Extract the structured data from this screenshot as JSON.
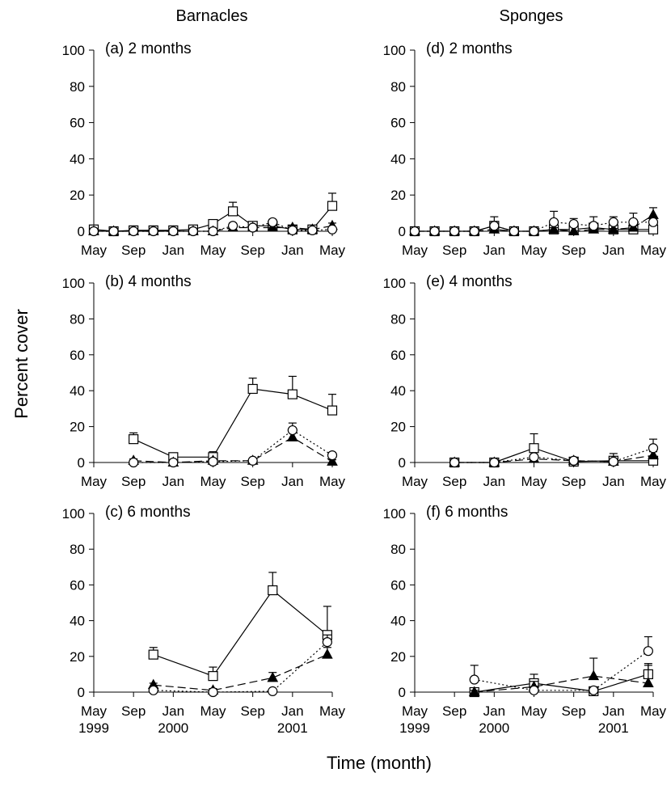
{
  "figure": {
    "ylabel": "Percent cover",
    "xlabel": "Time (month)",
    "column_titles": [
      "Barnacles",
      "Sponges"
    ]
  },
  "chart_data": [
    {
      "type": "line",
      "panel": "(a) 2 months",
      "column": "Barnacles",
      "ylim": [
        0,
        100
      ],
      "yticks": [
        0,
        20,
        40,
        60,
        80,
        100
      ],
      "xlim": [
        0,
        24
      ],
      "xticks": [
        0,
        4,
        8,
        12,
        16,
        20,
        24
      ],
      "xticklabels": [
        "May",
        "Sep",
        "Jan",
        "May",
        "Sep",
        "Jan",
        "May"
      ],
      "series": [
        {
          "marker": "square-open",
          "line": "solid",
          "x": [
            0,
            2,
            4,
            6,
            8,
            10,
            12,
            14,
            16,
            18,
            20,
            22,
            24
          ],
          "y": [
            1,
            0,
            0.5,
            0.5,
            0.5,
            1,
            4,
            11,
            3,
            3,
            1,
            1,
            14
          ],
          "err": [
            1,
            0,
            0.5,
            0.5,
            0.5,
            1,
            2,
            5,
            1.5,
            1.5,
            1,
            1,
            7
          ]
        },
        {
          "marker": "triangle-filled",
          "line": "dashed",
          "x": [
            0,
            2,
            4,
            6,
            8,
            10,
            12,
            14,
            16,
            18,
            20,
            22,
            24
          ],
          "y": [
            0,
            0,
            0,
            0,
            0,
            0,
            0,
            2,
            2,
            2,
            2,
            1,
            3
          ],
          "err": [
            0,
            0,
            0,
            0,
            0,
            0,
            0,
            1,
            1,
            1,
            1,
            0.5,
            1.5
          ]
        },
        {
          "marker": "circle-open",
          "line": "dotted",
          "x": [
            0,
            2,
            4,
            6,
            8,
            10,
            12,
            14,
            16,
            18,
            20,
            22,
            24
          ],
          "y": [
            0,
            0,
            0,
            0,
            0,
            0,
            0,
            3,
            2,
            5,
            0.5,
            0.5,
            1
          ],
          "err": [
            0,
            0,
            0,
            0,
            0,
            0,
            0,
            1.5,
            1,
            1.5,
            0.5,
            0.5,
            1
          ]
        }
      ]
    },
    {
      "type": "line",
      "panel": "(b) 4 months",
      "column": "Barnacles",
      "ylim": [
        0,
        100
      ],
      "yticks": [
        0,
        20,
        40,
        60,
        80,
        100
      ],
      "xlim": [
        0,
        24
      ],
      "xticks": [
        0,
        4,
        8,
        12,
        16,
        20,
        24
      ],
      "xticklabels": [
        "May",
        "Sep",
        "Jan",
        "May",
        "Sep",
        "Jan",
        "May"
      ],
      "series": [
        {
          "marker": "square-open",
          "line": "solid",
          "x": [
            4,
            8,
            12,
            16,
            20,
            24
          ],
          "y": [
            13,
            3,
            3,
            41,
            38,
            29
          ],
          "err": [
            3.5,
            1.5,
            3,
            6,
            10,
            9
          ]
        },
        {
          "marker": "triangle-filled",
          "line": "dashed",
          "x": [
            4,
            8,
            12,
            16,
            20,
            24
          ],
          "y": [
            1,
            0,
            1,
            1,
            14,
            0.5
          ],
          "err": [
            1,
            0,
            1,
            1,
            4,
            1
          ]
        },
        {
          "marker": "circle-open",
          "line": "dotted",
          "x": [
            4,
            8,
            12,
            16,
            20,
            24
          ],
          "y": [
            0,
            0,
            0.5,
            1,
            18,
            4
          ],
          "err": [
            0,
            0,
            0.5,
            1,
            4,
            1.5
          ]
        }
      ]
    },
    {
      "type": "line",
      "panel": "(c) 6 months",
      "column": "Barnacles",
      "ylim": [
        0,
        100
      ],
      "yticks": [
        0,
        20,
        40,
        60,
        80,
        100
      ],
      "xlim": [
        0,
        24
      ],
      "xticks": [
        0,
        4,
        8,
        12,
        16,
        20,
        24
      ],
      "xticklabels": [
        "May\n1999",
        "Sep",
        "Jan\n2000",
        "May",
        "Sep",
        "Jan\n2001",
        "May"
      ],
      "series": [
        {
          "marker": "square-open",
          "line": "solid",
          "x": [
            6,
            12,
            18,
            23.5
          ],
          "y": [
            21,
            9,
            57,
            32
          ],
          "err": [
            4,
            5,
            10,
            16
          ]
        },
        {
          "marker": "triangle-filled",
          "line": "dashed",
          "x": [
            6,
            12,
            18,
            23.5
          ],
          "y": [
            4,
            1,
            8,
            21
          ],
          "err": [
            1,
            1,
            3,
            4
          ]
        },
        {
          "marker": "circle-open",
          "line": "dotted",
          "x": [
            6,
            12,
            18,
            23.5
          ],
          "y": [
            1,
            0,
            0.5,
            28
          ],
          "err": [
            1,
            0,
            0.5,
            4
          ]
        }
      ]
    },
    {
      "type": "line",
      "panel": "(d) 2 months",
      "column": "Sponges",
      "ylim": [
        0,
        100
      ],
      "yticks": [
        0,
        20,
        40,
        60,
        80,
        100
      ],
      "xlim": [
        0,
        24
      ],
      "xticks": [
        0,
        4,
        8,
        12,
        16,
        20,
        24
      ],
      "xticklabels": [
        "May",
        "Sep",
        "Jan",
        "May",
        "Sep",
        "Jan",
        "May"
      ],
      "series": [
        {
          "marker": "square-open",
          "line": "solid",
          "x": [
            0,
            2,
            4,
            6,
            8,
            10,
            12,
            14,
            16,
            18,
            20,
            22,
            24
          ],
          "y": [
            0,
            0,
            0,
            0,
            3,
            0,
            0,
            1,
            1,
            2,
            1,
            1,
            1
          ],
          "err": [
            0,
            0,
            0,
            0,
            1,
            0,
            0,
            0.5,
            0.5,
            1,
            0.5,
            0.5,
            0.5
          ]
        },
        {
          "marker": "triangle-filled",
          "line": "dashed",
          "x": [
            0,
            2,
            4,
            6,
            8,
            10,
            12,
            14,
            16,
            18,
            20,
            22,
            24
          ],
          "y": [
            0,
            0,
            0,
            0,
            1,
            0,
            0,
            1,
            0,
            1,
            1,
            2,
            9
          ],
          "err": [
            0,
            0,
            0,
            0,
            1,
            0,
            0,
            1,
            0,
            0.5,
            0.5,
            1,
            4
          ]
        },
        {
          "marker": "circle-open",
          "line": "dotted",
          "x": [
            0,
            2,
            4,
            6,
            8,
            10,
            12,
            14,
            16,
            18,
            20,
            22,
            24
          ],
          "y": [
            0,
            0,
            0,
            0,
            3,
            0,
            0,
            5,
            4,
            3,
            5,
            5,
            5
          ],
          "err": [
            0,
            0,
            0,
            0,
            5,
            0,
            0,
            6,
            3,
            5,
            3,
            5,
            3
          ]
        }
      ]
    },
    {
      "type": "line",
      "panel": "(e) 4 months",
      "column": "Sponges",
      "ylim": [
        0,
        100
      ],
      "yticks": [
        0,
        20,
        40,
        60,
        80,
        100
      ],
      "xlim": [
        0,
        24
      ],
      "xticks": [
        0,
        4,
        8,
        12,
        16,
        20,
        24
      ],
      "xticklabels": [
        "May",
        "Sep",
        "Jan",
        "May",
        "Sep",
        "Jan",
        "May"
      ],
      "series": [
        {
          "marker": "square-open",
          "line": "solid",
          "x": [
            4,
            8,
            12,
            16,
            20,
            24
          ],
          "y": [
            0,
            0,
            8,
            0.5,
            1,
            1
          ],
          "err": [
            0,
            0,
            8,
            1,
            4,
            1
          ]
        },
        {
          "marker": "triangle-filled",
          "line": "dashed",
          "x": [
            4,
            8,
            12,
            16,
            20,
            24
          ],
          "y": [
            0,
            0,
            2,
            1,
            0.5,
            4
          ],
          "err": [
            0,
            0,
            1,
            1,
            0.5,
            2
          ]
        },
        {
          "marker": "circle-open",
          "line": "dotted",
          "x": [
            4,
            8,
            12,
            16,
            20,
            24
          ],
          "y": [
            0,
            0,
            3,
            1,
            0.5,
            8
          ],
          "err": [
            0,
            0,
            1,
            1,
            0.5,
            5
          ]
        }
      ]
    },
    {
      "type": "line",
      "panel": "(f) 6 months",
      "column": "Sponges",
      "ylim": [
        0,
        100
      ],
      "yticks": [
        0,
        20,
        40,
        60,
        80,
        100
      ],
      "xlim": [
        0,
        24
      ],
      "xticks": [
        0,
        4,
        8,
        12,
        16,
        20,
        24
      ],
      "xticklabels": [
        "May\n1999",
        "Sep",
        "Jan\n2000",
        "May",
        "Sep",
        "Jan\n2001",
        "May"
      ],
      "series": [
        {
          "marker": "square-open",
          "line": "solid",
          "x": [
            6,
            12,
            18,
            23.5
          ],
          "y": [
            0,
            5,
            0.5,
            10
          ],
          "err": [
            0,
            5,
            0.5,
            6
          ]
        },
        {
          "marker": "triangle-filled",
          "line": "dashed",
          "x": [
            6,
            12,
            18,
            23.5
          ],
          "y": [
            0,
            3,
            9,
            5
          ],
          "err": [
            1,
            3,
            10,
            10
          ]
        },
        {
          "marker": "circle-open",
          "line": "dotted",
          "x": [
            6,
            12,
            18,
            23.5
          ],
          "y": [
            7,
            1,
            1,
            23
          ],
          "err": [
            8,
            2,
            1,
            8
          ]
        }
      ]
    }
  ]
}
